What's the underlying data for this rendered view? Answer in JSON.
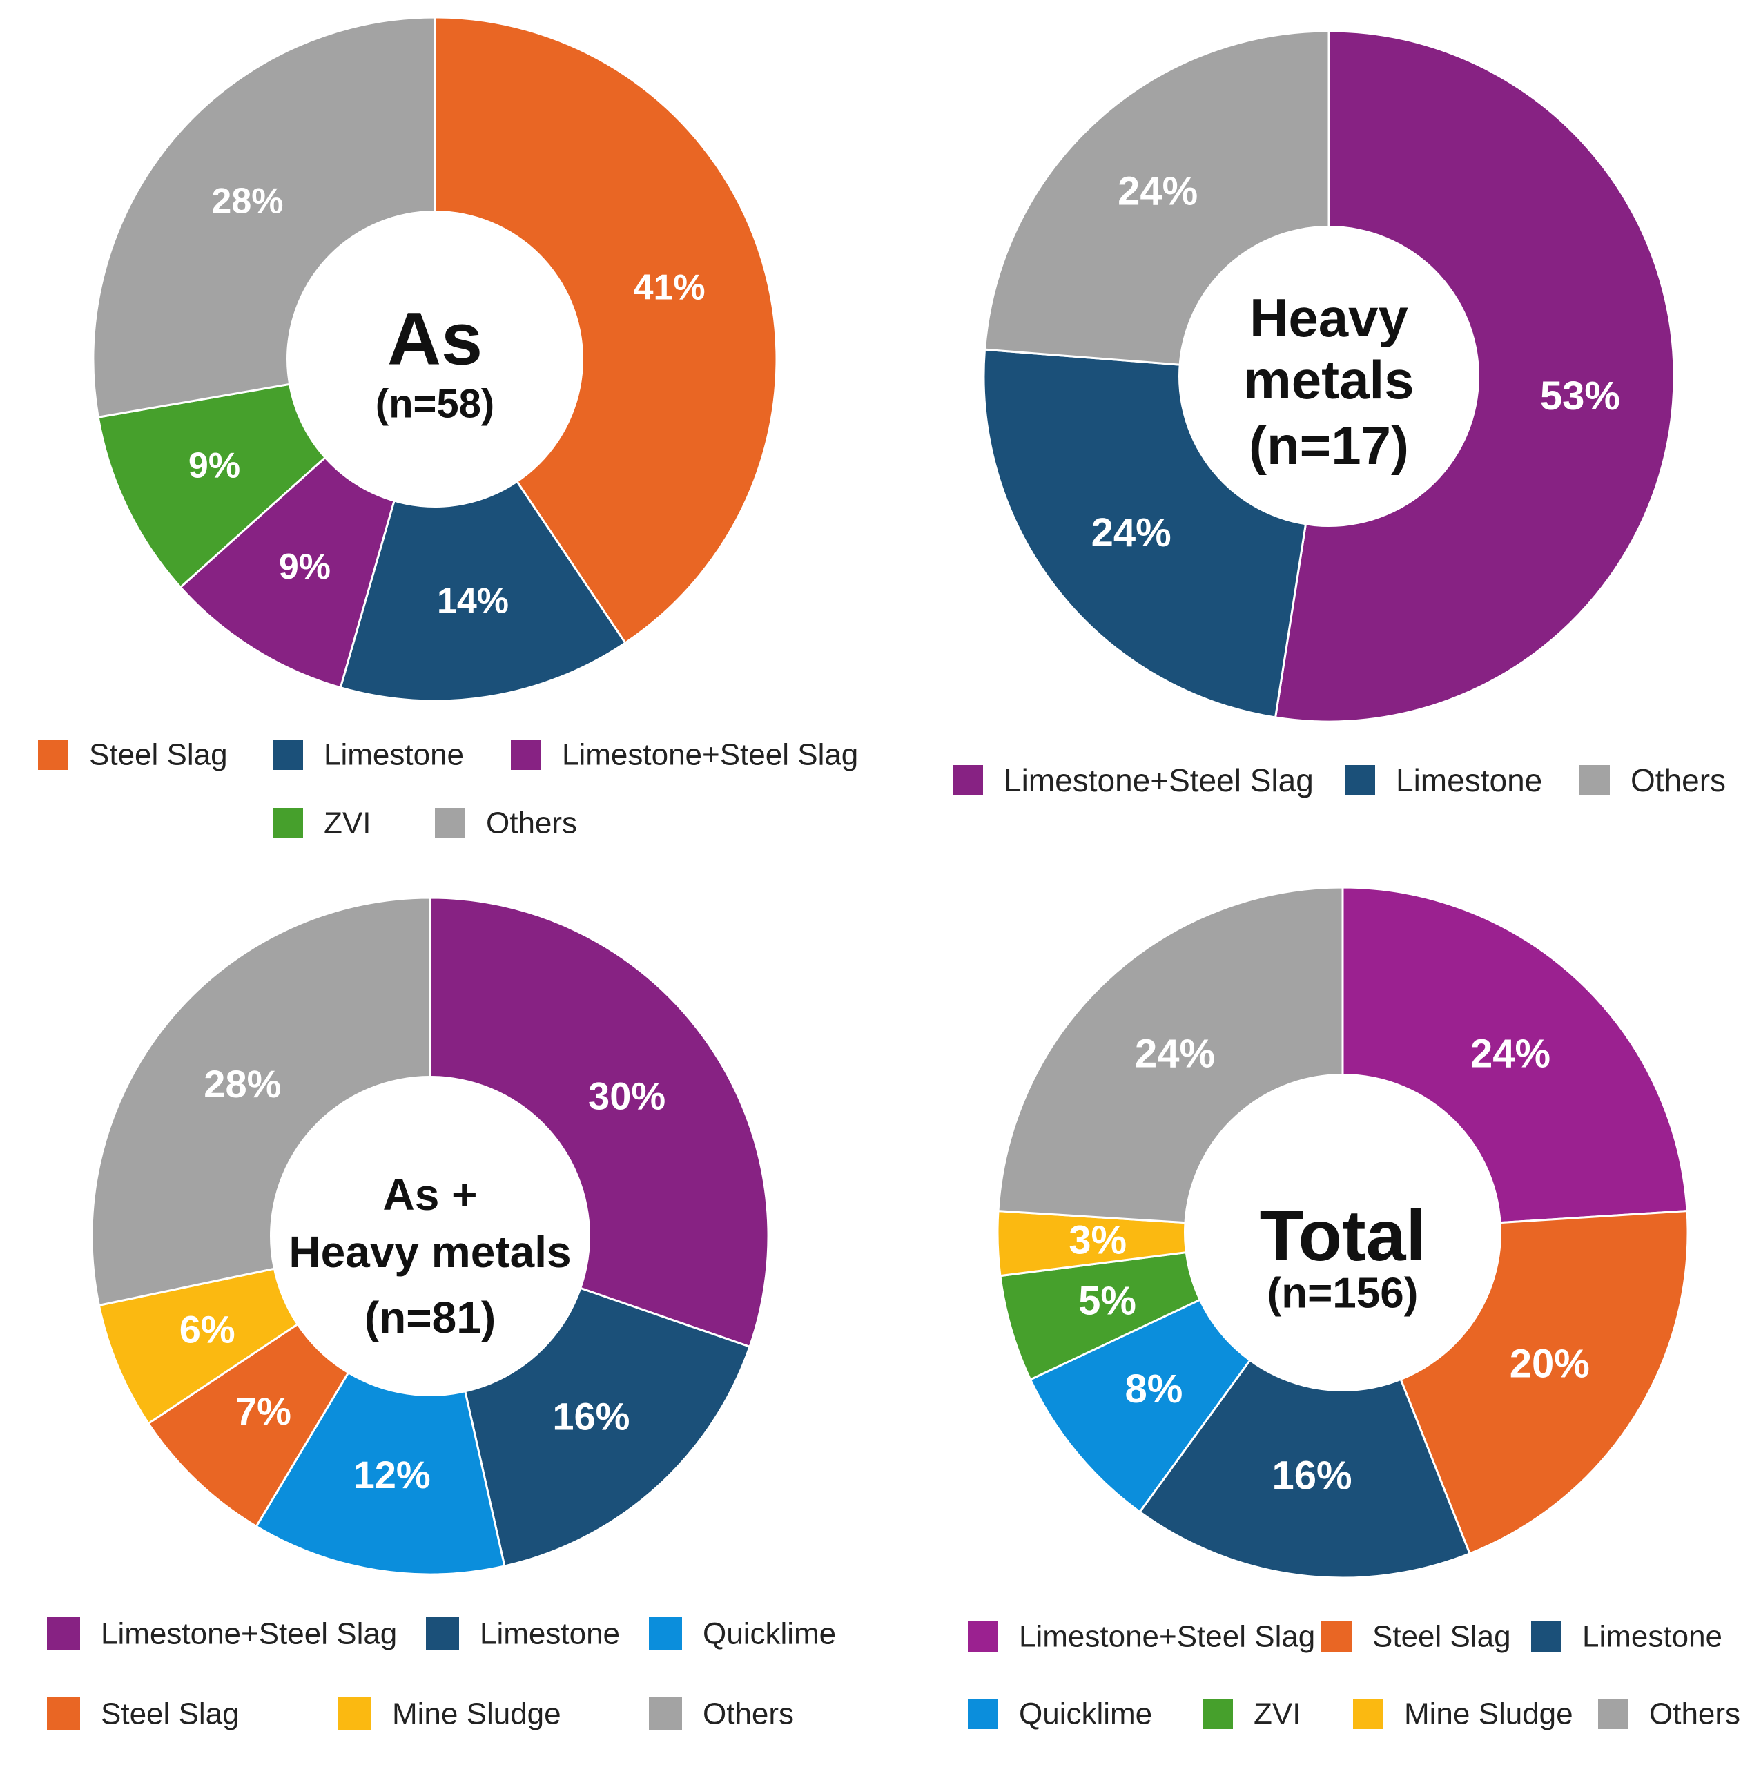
{
  "colors": {
    "steel_slag": "#E96624",
    "limestone": "#1B5079",
    "limestone_steel_slag": "#872283",
    "zvi": "#46A02C",
    "others": "#A3A3A3",
    "quicklime": "#0B8EDC",
    "mine_sludge": "#FBB911"
  },
  "chart_data": [
    {
      "type": "pie",
      "center_title": [
        "As"
      ],
      "center_subtitle": [
        "(n=58)"
      ],
      "series": [
        {
          "name": "Steel Slag",
          "value": 41,
          "label": "41%",
          "color": "#E96624"
        },
        {
          "name": "Limestone",
          "value": 14,
          "label": "14%",
          "color": "#1B5079"
        },
        {
          "name": "Limestone+Steel Slag",
          "value": 9,
          "label": "9%",
          "color": "#872283"
        },
        {
          "name": "ZVI",
          "value": 9,
          "label": "9%",
          "color": "#46A02C"
        },
        {
          "name": "Others",
          "value": 28,
          "label": "28%",
          "color": "#A3A3A3"
        }
      ],
      "legend": [
        [
          "Steel Slag",
          "Limestone",
          "Limestone+Steel Slag"
        ],
        [
          "ZVI",
          "Others"
        ]
      ]
    },
    {
      "type": "pie",
      "center_title": [
        "Heavy",
        "metals"
      ],
      "center_subtitle": [
        "(n=17)"
      ],
      "series": [
        {
          "name": "Limestone+Steel Slag",
          "value": 53,
          "label": "53%",
          "color": "#872283"
        },
        {
          "name": "Limestone",
          "value": 24,
          "label": "24%",
          "color": "#1B5079"
        },
        {
          "name": "Others",
          "value": 24,
          "label": "24%",
          "color": "#A3A3A3"
        }
      ],
      "legend": [
        [
          "Limestone+Steel Slag",
          "Limestone",
          "Others"
        ]
      ]
    },
    {
      "type": "pie",
      "center_title": [
        "As +",
        "Heavy metals"
      ],
      "center_subtitle": [
        "(n=81)"
      ],
      "series": [
        {
          "name": "Limestone+Steel Slag",
          "value": 30,
          "label": "30%",
          "color": "#872283"
        },
        {
          "name": "Limestone",
          "value": 16,
          "label": "16%",
          "color": "#1B5079"
        },
        {
          "name": "Quicklime",
          "value": 12,
          "label": "12%",
          "color": "#0B8EDC"
        },
        {
          "name": "Steel Slag",
          "value": 7,
          "label": "7%",
          "color": "#E96624"
        },
        {
          "name": "Mine Sludge",
          "value": 6,
          "label": "6%",
          "color": "#FBB911"
        },
        {
          "name": "Others",
          "value": 28,
          "label": "28%",
          "color": "#A3A3A3"
        }
      ],
      "legend": [
        [
          "Limestone+Steel Slag",
          "Limestone",
          "Quicklime"
        ],
        [
          "Steel Slag",
          "Mine Sludge",
          "Others"
        ]
      ]
    },
    {
      "type": "pie",
      "center_title": [
        "Total"
      ],
      "center_subtitle": [
        "(n=156)"
      ],
      "series": [
        {
          "name": "Limestone+Steel Slag",
          "value": 24,
          "label": "24%",
          "color": "#9B2190"
        },
        {
          "name": "Steel Slag",
          "value": 20,
          "label": "20%",
          "color": "#E96624"
        },
        {
          "name": "Limestone",
          "value": 16,
          "label": "16%",
          "color": "#1B5079"
        },
        {
          "name": "Quicklime",
          "value": 8,
          "label": "8%",
          "color": "#0B8EDC"
        },
        {
          "name": "ZVI",
          "value": 5,
          "label": "5%",
          "color": "#46A02C"
        },
        {
          "name": "Mine Sludge",
          "value": 3,
          "label": "3%",
          "color": "#FBB911"
        },
        {
          "name": "Others",
          "value": 24,
          "label": "24%",
          "color": "#A3A3A3"
        }
      ],
      "legend": [
        [
          "Limestone+Steel Slag",
          "Steel Slag",
          "Limestone"
        ],
        [
          "Quicklime",
          "ZVI",
          "Mine Sludge",
          "Others"
        ]
      ]
    }
  ]
}
